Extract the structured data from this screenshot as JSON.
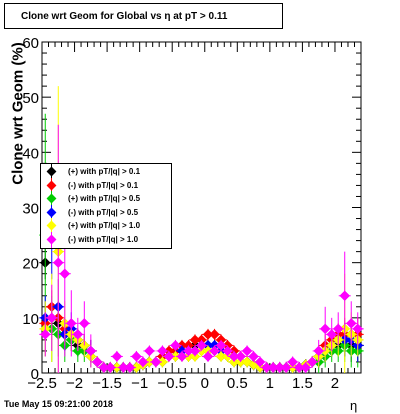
{
  "chart_data": {
    "type": "scatter",
    "title": "Clone wrt Geom for Global vs   η at pT > 0.11",
    "ylabel": "Clone wrt Geom (%)",
    "xlabel": "η",
    "xlim": [
      -2.5,
      2.4
    ],
    "ylim": [
      0,
      60
    ],
    "x_ticks": [
      "−2.5",
      "−2",
      "−1.5",
      "−1",
      "−0.5",
      "0",
      "0.5",
      "1",
      "1.5",
      "2"
    ],
    "x_tick_values": [
      -2.5,
      -2,
      -1.5,
      -1,
      -0.5,
      0,
      0.5,
      1,
      1.5,
      2
    ],
    "y_ticks": [
      "0",
      "10",
      "20",
      "30",
      "40",
      "50",
      "60"
    ],
    "y_tick_values": [
      0,
      10,
      20,
      30,
      40,
      50,
      60
    ],
    "legend_position": "left",
    "series": [
      {
        "name": "(+) with pT/|q| > 0.1",
        "color": "#000000",
        "x": [
          -2.45,
          -2.35,
          -2.25,
          -2.15,
          -2.05,
          -1.95,
          -1.85,
          -1.75,
          -1.65,
          -1.55,
          -1.45,
          -1.35,
          -1.25,
          -1.15,
          -1.05,
          -0.95,
          -0.85,
          -0.75,
          -0.65,
          -0.55,
          -0.45,
          -0.35,
          -0.25,
          -0.15,
          -0.05,
          0.05,
          0.15,
          0.25,
          0.35,
          0.45,
          0.55,
          0.65,
          0.75,
          0.85,
          0.95,
          1.05,
          1.15,
          1.25,
          1.35,
          1.45,
          1.55,
          1.65,
          1.75,
          1.85,
          1.95,
          2.05,
          2.15,
          2.25,
          2.35
        ],
        "y": [
          20,
          10,
          9,
          7,
          6,
          5,
          5,
          4,
          2,
          1,
          1,
          1,
          1,
          1,
          1,
          1.5,
          2,
          2,
          3,
          3,
          3,
          4,
          4,
          5,
          5,
          5,
          5,
          4,
          3,
          2,
          2,
          2,
          1.5,
          1,
          1,
          1,
          1,
          1,
          1,
          1,
          1.5,
          2,
          3,
          4,
          5,
          5,
          6,
          5,
          5
        ],
        "err": [
          3,
          3,
          3,
          2,
          2,
          2,
          2,
          2,
          1,
          1,
          1,
          1,
          1,
          1,
          1,
          1,
          1,
          1,
          1,
          1,
          1,
          1,
          1,
          1,
          1,
          1,
          1,
          1,
          1,
          1,
          1,
          1,
          1,
          1,
          1,
          1,
          1,
          1,
          1,
          1,
          1,
          1,
          2,
          2,
          2,
          2,
          3,
          3,
          3
        ]
      },
      {
        "name": "(-) with pT/|q| > 0.1",
        "color": "#ff0000",
        "x": [
          -2.45,
          -2.35,
          -2.25,
          -2.15,
          -2.05,
          -1.95,
          -1.85,
          -1.75,
          -1.65,
          -1.55,
          -1.45,
          -1.35,
          -1.25,
          -1.15,
          -1.05,
          -0.95,
          -0.85,
          -0.75,
          -0.65,
          -0.55,
          -0.45,
          -0.35,
          -0.25,
          -0.15,
          -0.05,
          0.05,
          0.15,
          0.25,
          0.35,
          0.45,
          0.55,
          0.65,
          0.75,
          0.85,
          0.95,
          1.05,
          1.15,
          1.25,
          1.35,
          1.45,
          1.55,
          1.65,
          1.75,
          1.85,
          1.95,
          2.05,
          2.15,
          2.25,
          2.35
        ],
        "y": [
          9,
          12,
          10,
          8,
          7,
          6,
          5,
          4,
          2,
          1,
          1,
          1,
          1,
          1,
          1,
          1.5,
          2,
          2,
          3,
          4,
          4,
          5,
          5,
          6,
          6,
          7,
          7,
          6,
          5,
          4,
          3,
          2,
          1.5,
          1,
          1,
          1,
          1,
          1,
          1,
          1,
          1.5,
          2,
          3,
          5,
          6,
          7,
          7,
          7,
          7
        ],
        "err": [
          3,
          3,
          3,
          2,
          2,
          2,
          2,
          2,
          1,
          1,
          1,
          1,
          1,
          1,
          1,
          1,
          1,
          1,
          1,
          1,
          1,
          1,
          1,
          1,
          1,
          1,
          1,
          1,
          1,
          1,
          1,
          1,
          1,
          1,
          1,
          1,
          1,
          1,
          1,
          1,
          1,
          1,
          2,
          2,
          2,
          2,
          3,
          3,
          3
        ]
      },
      {
        "name": "(+) with pT/|q| > 0.5",
        "color": "#00cc00",
        "x": [
          -2.45,
          -2.35,
          -2.25,
          -2.15,
          -2.05,
          -1.95,
          -1.85,
          -1.75,
          -1.65,
          -1.55,
          -1.45,
          -1.35,
          -1.25,
          -1.15,
          -1.05,
          -0.95,
          -0.85,
          -0.75,
          -0.65,
          -0.55,
          -0.45,
          -0.35,
          -0.25,
          -0.15,
          -0.05,
          0.05,
          0.15,
          0.25,
          0.35,
          0.45,
          0.55,
          0.65,
          0.75,
          0.85,
          0.95,
          1.05,
          1.15,
          1.25,
          1.35,
          1.45,
          1.55,
          1.65,
          1.75,
          1.85,
          1.95,
          2.05,
          2.15,
          2.25,
          2.35
        ],
        "y": [
          25,
          8,
          7,
          5,
          6,
          4,
          4,
          3,
          2,
          1,
          1,
          1,
          1,
          1,
          1,
          1.5,
          2,
          2,
          2,
          3,
          3,
          3,
          3,
          4,
          4,
          4,
          4,
          3,
          3,
          2,
          2,
          2,
          1.5,
          1,
          1,
          1,
          1,
          1,
          1,
          1,
          1.5,
          2,
          2,
          3,
          4,
          4,
          5,
          4,
          4
        ],
        "err": [
          22,
          6,
          4,
          3,
          2,
          2,
          2,
          2,
          1,
          1,
          1,
          1,
          1,
          1,
          1,
          1,
          1,
          1,
          1,
          1,
          1,
          1,
          1,
          1,
          1,
          1,
          1,
          1,
          1,
          1,
          1,
          1,
          1,
          1,
          1,
          1,
          1,
          1,
          1,
          1,
          1,
          1,
          2,
          2,
          2,
          2,
          3,
          3,
          3
        ]
      },
      {
        "name": "(-) with pT/|q| > 0.5",
        "color": "#0000ff",
        "x": [
          -2.45,
          -2.35,
          -2.25,
          -2.15,
          -2.05,
          -1.95,
          -1.85,
          -1.75,
          -1.65,
          -1.55,
          -1.45,
          -1.35,
          -1.25,
          -1.15,
          -1.05,
          -0.95,
          -0.85,
          -0.75,
          -0.65,
          -0.55,
          -0.45,
          -0.35,
          -0.25,
          -0.15,
          -0.05,
          0.05,
          0.15,
          0.25,
          0.35,
          0.45,
          0.55,
          0.65,
          0.75,
          0.85,
          0.95,
          1.05,
          1.15,
          1.25,
          1.35,
          1.45,
          1.55,
          1.65,
          1.75,
          1.85,
          1.95,
          2.05,
          2.15,
          2.25,
          2.35
        ],
        "y": [
          10,
          25,
          12,
          7,
          8,
          6,
          5,
          4,
          2,
          1,
          1,
          1,
          1,
          1,
          1,
          1.5,
          2,
          2,
          2,
          3,
          3,
          4,
          4,
          4,
          5,
          5,
          5,
          4,
          3,
          3,
          2,
          2,
          1.5,
          1,
          1,
          1,
          1,
          1,
          1,
          1,
          1.5,
          2,
          3,
          4,
          5,
          6,
          6,
          6,
          5
        ],
        "err": [
          4,
          8,
          5,
          3,
          3,
          2,
          2,
          2,
          1,
          1,
          1,
          1,
          1,
          1,
          1,
          1,
          1,
          1,
          1,
          1,
          1,
          1,
          1,
          1,
          1,
          1,
          1,
          1,
          1,
          1,
          1,
          1,
          1,
          1,
          1,
          1,
          1,
          1,
          1,
          1,
          1,
          1,
          2,
          2,
          2,
          2,
          3,
          3,
          3
        ]
      },
      {
        "name": "(+) with pT/|q| > 1.0",
        "color": "#ffff00",
        "x": [
          -2.45,
          -2.35,
          -2.25,
          -2.15,
          -2.05,
          -1.95,
          -1.85,
          -1.75,
          -1.65,
          -1.55,
          -1.45,
          -1.35,
          -1.25,
          -1.15,
          -1.05,
          -0.95,
          -0.85,
          -0.75,
          -0.65,
          -0.55,
          -0.45,
          -0.35,
          -0.25,
          -0.15,
          -0.05,
          0.05,
          0.15,
          0.25,
          0.35,
          0.45,
          0.55,
          0.65,
          0.75,
          0.85,
          0.95,
          1.05,
          1.15,
          1.25,
          1.35,
          1.45,
          1.55,
          1.65,
          1.75,
          1.85,
          1.95,
          2.05,
          2.15,
          2.25,
          2.35
        ],
        "y": [
          8,
          10,
          22,
          9,
          7,
          6,
          5,
          3,
          2,
          1,
          1,
          1,
          1,
          1,
          1,
          1.5,
          2,
          2,
          2,
          3,
          3,
          3,
          3,
          3,
          4,
          4,
          4,
          3,
          3,
          2,
          2,
          2,
          1.5,
          1,
          1,
          1,
          1,
          1,
          1,
          1,
          1.5,
          2,
          3,
          4,
          5,
          6,
          8,
          7,
          6
        ],
        "err": [
          5,
          8,
          30,
          4,
          3,
          2,
          2,
          2,
          1,
          1,
          1,
          1,
          1,
          1,
          1,
          1,
          1,
          1,
          1,
          1,
          1,
          1,
          1,
          1,
          1,
          1,
          1,
          1,
          1,
          1,
          1,
          1,
          1,
          1,
          1,
          1,
          1,
          1,
          1,
          1,
          1,
          1,
          2,
          2,
          2,
          3,
          10,
          4,
          3
        ]
      },
      {
        "name": "(-) with pT/|q| > 1.0",
        "color": "#ff00ff",
        "x": [
          -2.45,
          -2.35,
          -2.25,
          -2.15,
          -2.05,
          -1.95,
          -1.85,
          -1.75,
          -1.65,
          -1.55,
          -1.45,
          -1.35,
          -1.25,
          -1.15,
          -1.05,
          -0.95,
          -0.85,
          -0.75,
          -0.65,
          -0.55,
          -0.45,
          -0.35,
          -0.25,
          -0.15,
          -0.05,
          0.05,
          0.15,
          0.25,
          0.35,
          0.45,
          0.55,
          0.65,
          0.75,
          0.85,
          0.95,
          1.05,
          1.15,
          1.25,
          1.35,
          1.45,
          1.55,
          1.65,
          1.75,
          1.85,
          1.95,
          2.05,
          2.15,
          2.25,
          2.35
        ],
        "y": [
          7,
          10,
          20,
          18,
          9,
          7,
          9,
          4,
          2,
          1,
          1,
          3,
          1,
          1,
          3,
          2,
          4,
          2,
          4,
          3,
          5,
          3,
          4,
          4,
          5,
          3,
          4,
          5,
          4,
          3,
          3,
          4,
          3,
          2,
          1,
          1,
          1,
          1,
          2,
          1,
          1,
          2,
          4,
          8,
          7,
          8,
          14,
          9,
          8
        ],
        "err": [
          4,
          6,
          25,
          15,
          6,
          3,
          4,
          3,
          1,
          1,
          1,
          1,
          1,
          1,
          1,
          1,
          1,
          1,
          1,
          1,
          1,
          1,
          1,
          1,
          1,
          1,
          1,
          1,
          1,
          1,
          1,
          1,
          1,
          1,
          1,
          1,
          1,
          1,
          1,
          1,
          1,
          1,
          2,
          4,
          3,
          3,
          8,
          4,
          3
        ]
      }
    ]
  },
  "footer": {
    "timestamp": "Tue May 15 09:21:00 2018"
  }
}
